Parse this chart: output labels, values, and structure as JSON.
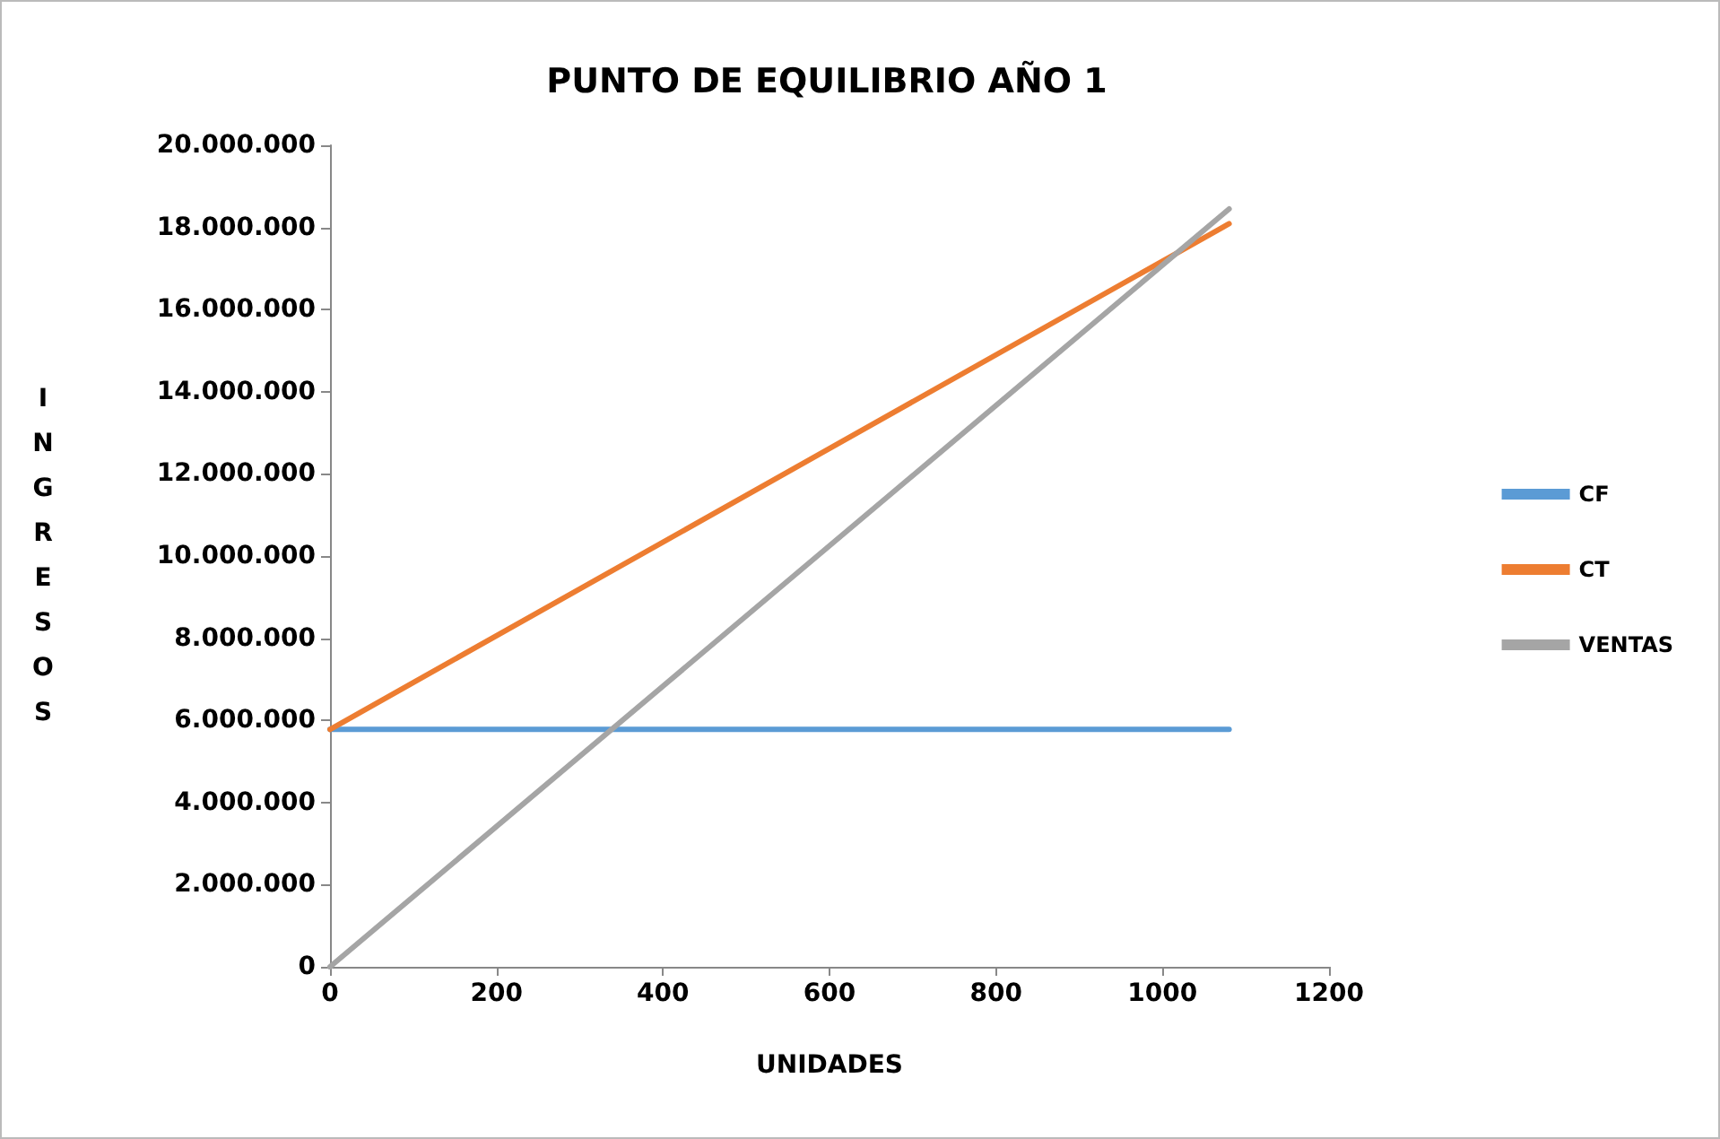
{
  "chart_data": {
    "type": "line",
    "title": "PUNTO DE EQUILIBRIO AÑO 1",
    "xlabel": "UNIDADES",
    "ylabel": "INGRESOS",
    "x": [
      0,
      1080
    ],
    "series": [
      {
        "name": "CF",
        "color": "#5b9bd5",
        "values": [
          5780000,
          5780000
        ]
      },
      {
        "name": "CT",
        "color": "#ed7d31",
        "values": [
          5780000,
          18090000
        ]
      },
      {
        "name": "VENTAS",
        "color": "#a5a5a5",
        "values": [
          0,
          18450000
        ]
      }
    ],
    "xlim": [
      0,
      1200
    ],
    "xticks": [
      0,
      200,
      400,
      600,
      800,
      1000,
      1200
    ],
    "ylim": [
      0,
      20000000
    ],
    "yticks": [
      {
        "value": 0,
        "label": "0"
      },
      {
        "value": 2000000,
        "label": "2.000.000"
      },
      {
        "value": 4000000,
        "label": "4.000.000"
      },
      {
        "value": 6000000,
        "label": "6.000.000"
      },
      {
        "value": 8000000,
        "label": "8.000.000"
      },
      {
        "value": 10000000,
        "label": "10.000.000"
      },
      {
        "value": 12000000,
        "label": "12.000.000"
      },
      {
        "value": 14000000,
        "label": "14.000.000"
      },
      {
        "value": 16000000,
        "label": "16.000.000"
      },
      {
        "value": 18000000,
        "label": "18.000.000"
      },
      {
        "value": 20000000,
        "label": "20.000.000"
      }
    ],
    "grid": false,
    "legend": "right",
    "marker": "none",
    "line_style": "solid"
  }
}
